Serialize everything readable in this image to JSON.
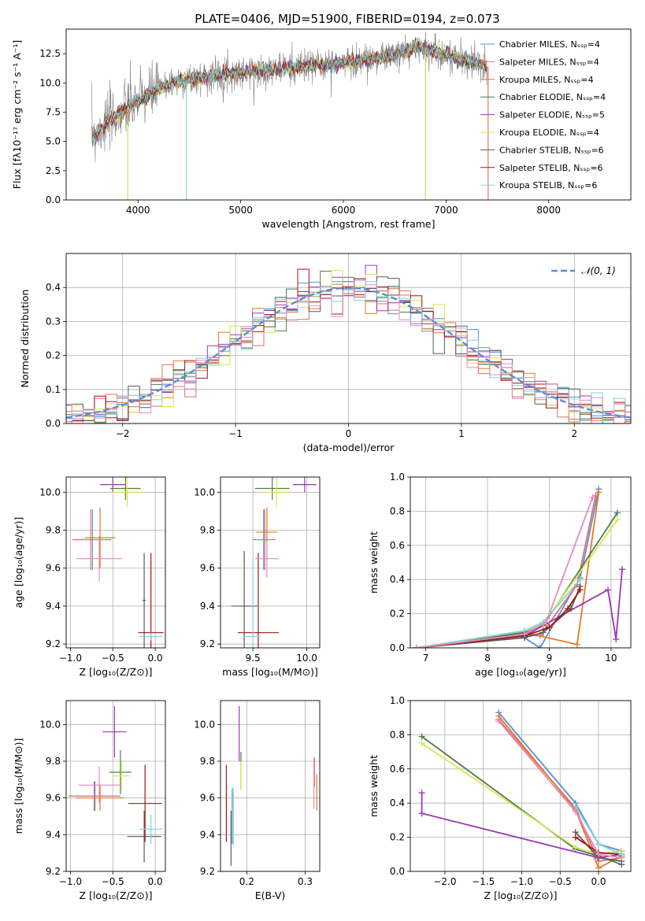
{
  "figure_title": "PLATE=0406, MJD=51900, FIBERID=0194, z=0.073",
  "colors": {
    "chabrier_miles": "#5b8fd6",
    "salpeter_miles": "#e36f6f",
    "kroupa_miles": "#e07b22",
    "chabrier_elodie": "#4f7a55",
    "salpeter_elodie": "#9b36b7",
    "kroupa_elodie": "#d6e84e",
    "chabrier_stelib": "#5a5a5a",
    "salpeter_stelib": "#a01515",
    "kroupa_stelib": "#7fd6d6",
    "pink": "#e58ac6",
    "observed": "#808080",
    "normal_curve": "#5b8fd6"
  },
  "chart_data": [
    {
      "id": "spectrum",
      "type": "line",
      "xlabel": "wavelength [Angstrom, rest frame]",
      "ylabel": "Flux [fλ10⁻¹⁷ erg cm⁻² s⁻¹ A⁻¹]",
      "xlim": [
        3300,
        8800
      ],
      "ylim": [
        0,
        14.6
      ],
      "xticks": [
        4000,
        5000,
        6000,
        7000,
        8000
      ],
      "yticks": [
        0.0,
        2.5,
        5.0,
        7.5,
        10.0,
        12.5
      ],
      "grid": false,
      "legend_position": "upper right",
      "legend": [
        "Chabrier MILES, Nₛₛₚ=4",
        "Salpeter MILES, Nₛₛₚ=4",
        "Kroupa MILES, Nₛₛₚ=4",
        "Chabrier ELODIE, Nₛₛₚ=4",
        "Salpeter ELODIE, Nₛₛₚ=5",
        "Kroupa ELODIE, Nₛₛₚ=4",
        "Chabrier STELIB, Nₛₛₚ=6",
        "Salpeter STELIB, Nₛₛₚ=6",
        "Kroupa STELIB, Nₛₛₚ=6"
      ],
      "continuum": {
        "x": [
          3550,
          3700,
          3900,
          4100,
          4300,
          4500,
          4800,
          5100,
          5400,
          5700,
          6000,
          6300,
          6600,
          6700,
          7000,
          7200,
          7400
        ],
        "y": [
          5.4,
          6.6,
          7.9,
          9.0,
          9.9,
          10.3,
          10.7,
          11.0,
          11.2,
          11.5,
          11.7,
          12.1,
          12.6,
          13.1,
          12.4,
          11.9,
          11.4
        ]
      },
      "spikes": [
        {
          "x": 3900,
          "y": 0.0
        },
        {
          "x": 4470,
          "y": 0.0
        },
        {
          "x": 6800,
          "y": 0.0
        },
        {
          "x": 7410,
          "y": 0.0
        }
      ]
    },
    {
      "id": "residuals",
      "type": "histogram",
      "xlabel": "(data-model)/error",
      "ylabel": "Normed distribution",
      "xlim": [
        -2.5,
        2.5
      ],
      "ylim": [
        0,
        0.5
      ],
      "xticks": [
        -2,
        -1,
        0,
        1,
        2
      ],
      "yticks": [
        0.0,
        0.1,
        0.2,
        0.3,
        0.4
      ],
      "grid": true,
      "legend_position": "upper right",
      "legend": [
        "𝒩(0, 1)"
      ],
      "bin_width": 0.1
    },
    {
      "id": "age_vs_Z",
      "type": "errorbar",
      "xlabel": "Z [log₁₀(Z/Z⊙)]",
      "ylabel": "age  [log₁₀(age/yr)]",
      "xlim": [
        -1.05,
        0.12
      ],
      "ylim": [
        9.18,
        10.08
      ],
      "xticks": [
        -1.0,
        -0.5,
        0.0
      ],
      "yticks": [
        9.2,
        9.4,
        9.6,
        9.8,
        10.0
      ],
      "grid": true,
      "points": [
        {
          "c": "chabrier_miles",
          "x": -0.74,
          "xerr": 0.22,
          "y": 9.75,
          "yerr": 0.16
        },
        {
          "c": "salpeter_miles",
          "x": -0.76,
          "xerr": 0.22,
          "y": 9.75,
          "yerr": 0.16
        },
        {
          "c": "kroupa_miles",
          "x": -0.65,
          "xerr": 0.18,
          "y": 9.76,
          "yerr": 0.16
        },
        {
          "c": "chabrier_elodie",
          "x": -0.35,
          "xerr": 0.18,
          "y": 10.02,
          "yerr": 0.06
        },
        {
          "c": "salpeter_elodie",
          "x": -0.5,
          "xerr": 0.15,
          "y": 10.04,
          "yerr": 0.04
        },
        {
          "c": "kroupa_elodie",
          "x": -0.33,
          "xerr": 0.18,
          "y": 10.0,
          "yerr": 0.08
        },
        {
          "c": "chabrier_stelib",
          "x": -0.13,
          "xerr": 0.02,
          "y": 9.43,
          "yerr": 0.25
        },
        {
          "c": "salpeter_stelib",
          "x": -0.05,
          "xerr": 0.15,
          "y": 9.26,
          "yerr": 0.42
        },
        {
          "c": "kroupa_stelib",
          "x": -0.05,
          "xerr": 0.14,
          "y": 9.24,
          "yerr": 0.02
        },
        {
          "c": "pink",
          "x": -0.66,
          "xerr": 0.27,
          "y": 9.65,
          "yerr": 0.12
        }
      ]
    },
    {
      "id": "age_vs_mass",
      "type": "errorbar",
      "xlabel": "mass [log₁₀(M/M⊙)]",
      "ylabel": "",
      "xlim": [
        9.2,
        10.12
      ],
      "ylim": [
        9.18,
        10.08
      ],
      "xticks": [
        9.5,
        10.0
      ],
      "yticks": [
        9.2,
        9.4,
        9.6,
        9.8,
        10.0
      ],
      "grid": true,
      "points": [
        {
          "c": "chabrier_miles",
          "x": 9.6,
          "xerr": 0.1,
          "y": 9.75,
          "yerr": 0.16
        },
        {
          "c": "salpeter_miles",
          "x": 9.61,
          "xerr": 0.1,
          "y": 9.75,
          "yerr": 0.16
        },
        {
          "c": "kroupa_miles",
          "x": 9.63,
          "xerr": 0.1,
          "y": 9.79,
          "yerr": 0.13
        },
        {
          "c": "chabrier_elodie",
          "x": 9.68,
          "xerr": 0.16,
          "y": 10.02,
          "yerr": 0.06
        },
        {
          "c": "salpeter_elodie",
          "x": 9.98,
          "xerr": 0.11,
          "y": 10.04,
          "yerr": 0.04
        },
        {
          "c": "kroupa_elodie",
          "x": 9.72,
          "xerr": 0.12,
          "y": 10.0,
          "yerr": 0.08
        },
        {
          "c": "chabrier_stelib",
          "x": 9.42,
          "xerr": 0.12,
          "y": 9.4,
          "yerr": 0.29
        },
        {
          "c": "salpeter_stelib",
          "x": 9.55,
          "xerr": 0.19,
          "y": 9.26,
          "yerr": 0.42
        },
        {
          "c": "kroupa_stelib",
          "x": 9.5,
          "xerr": 0.07,
          "y": 9.24,
          "yerr": 0.42
        },
        {
          "c": "pink",
          "x": 9.63,
          "xerr": 0.11,
          "y": 9.65,
          "yerr": 0.1
        }
      ]
    },
    {
      "id": "massweight_vs_age",
      "type": "line",
      "xlabel": "age  [log₁₀(age/yr)]",
      "ylabel": "mass weight",
      "xlim": [
        6.75,
        10.32
      ],
      "ylim": [
        0,
        1
      ],
      "xticks": [
        7,
        8,
        9,
        10
      ],
      "yticks": [
        0.0,
        0.2,
        0.4,
        0.6,
        0.8,
        1.0
      ],
      "grid": true,
      "series": [
        {
          "c": "chabrier_miles",
          "x": [
            6.85,
            8.55,
            8.85,
            9.5,
            9.8
          ],
          "y": [
            0.0,
            0.07,
            0.0,
            0.41,
            0.93
          ]
        },
        {
          "c": "salpeter_miles",
          "x": [
            6.85,
            8.55,
            8.85,
            9.45,
            9.75
          ],
          "y": [
            0.0,
            0.08,
            0.07,
            0.37,
            0.89
          ]
        },
        {
          "c": "kroupa_miles",
          "x": [
            6.85,
            8.6,
            9.45,
            9.8
          ],
          "y": [
            0.0,
            0.09,
            0.02,
            0.91
          ]
        },
        {
          "c": "chabrier_elodie",
          "x": [
            6.85,
            8.6,
            8.9,
            10.1
          ],
          "y": [
            0.0,
            0.09,
            0.13,
            0.79
          ]
        },
        {
          "c": "salpeter_elodie",
          "x": [
            6.85,
            8.65,
            9.95,
            10.08,
            10.18
          ],
          "y": [
            0.0,
            0.08,
            0.34,
            0.05,
            0.46
          ]
        },
        {
          "c": "kroupa_elodie",
          "x": [
            6.85,
            8.6,
            8.9,
            10.1
          ],
          "y": [
            0.0,
            0.1,
            0.14,
            0.75
          ]
        },
        {
          "c": "chabrier_stelib",
          "x": [
            6.85,
            8.6,
            8.9,
            9.35,
            9.5
          ],
          "y": [
            0.0,
            0.06,
            0.09,
            0.23,
            0.36
          ]
        },
        {
          "c": "salpeter_stelib",
          "x": [
            6.85,
            8.6,
            9.0,
            9.3,
            9.5
          ],
          "y": [
            0.0,
            0.07,
            0.12,
            0.23,
            0.34
          ]
        },
        {
          "c": "kroupa_stelib",
          "x": [
            6.85,
            8.6,
            8.9,
            9.5
          ],
          "y": [
            0.0,
            0.1,
            0.15,
            0.4
          ]
        },
        {
          "c": "pink",
          "x": [
            6.85,
            8.6,
            8.95,
            9.7
          ],
          "y": [
            0.0,
            0.08,
            0.15,
            0.88
          ]
        }
      ]
    },
    {
      "id": "mass_vs_Z",
      "type": "errorbar",
      "xlabel": "Z [log₁₀(Z/Z⊙)]",
      "ylabel": "mass [log₁₀(M/M⊙)]",
      "xlim": [
        -1.05,
        0.12
      ],
      "ylim": [
        9.2,
        10.13
      ],
      "xticks": [
        -1.0,
        -0.5,
        0.0
      ],
      "yticks": [
        9.2,
        9.4,
        9.6,
        9.8,
        10.0
      ],
      "grid": true,
      "points": [
        {
          "c": "chabrier_miles",
          "x": -0.71,
          "xerr": 0.3,
          "y": 9.61,
          "yerr": 0.08
        },
        {
          "c": "salpeter_miles",
          "x": -0.72,
          "xerr": 0.3,
          "y": 9.61,
          "yerr": 0.08
        },
        {
          "c": "kroupa_miles",
          "x": -0.65,
          "xerr": 0.28,
          "y": 9.6,
          "yerr": 0.07
        },
        {
          "c": "chabrier_elodie",
          "x": -0.41,
          "xerr": 0.13,
          "y": 9.74,
          "yerr": 0.12
        },
        {
          "c": "salpeter_elodie",
          "x": -0.48,
          "xerr": 0.14,
          "y": 9.96,
          "yerr": 0.14
        },
        {
          "c": "kroupa_elodie",
          "x": -0.4,
          "xerr": 0.1,
          "y": 9.72,
          "yerr": 0.08
        },
        {
          "c": "chabrier_stelib",
          "x": -0.13,
          "xerr": 0.2,
          "y": 9.39,
          "yerr": 0.14
        },
        {
          "c": "salpeter_stelib",
          "x": -0.12,
          "xerr": 0.2,
          "y": 9.57,
          "yerr": 0.21
        },
        {
          "c": "kroupa_stelib",
          "x": -0.05,
          "xerr": 0.14,
          "y": 9.43,
          "yerr": 0.08
        },
        {
          "c": "pink",
          "x": -0.66,
          "xerr": 0.25,
          "y": 9.67,
          "yerr": 0.1
        }
      ]
    },
    {
      "id": "mass_vs_ebv",
      "type": "errorbar",
      "xlabel": "E(B-V)",
      "ylabel": "",
      "xlim": [
        0.155,
        0.325
      ],
      "ylim": [
        9.2,
        10.13
      ],
      "xticks": [
        0.2,
        0.3
      ],
      "yticks": [
        9.2,
        9.4,
        9.6,
        9.8,
        10.0
      ],
      "grid": true,
      "points": [
        {
          "c": "chabrier_miles",
          "x": 0.175,
          "xerr": 0.0,
          "y": 9.5,
          "yerr": 0.15
        },
        {
          "c": "salpeter_miles",
          "x": 0.316,
          "xerr": 0.0,
          "y": 9.74,
          "yerr": 0.08
        },
        {
          "c": "kroupa_miles",
          "x": 0.32,
          "xerr": 0.0,
          "y": 9.63,
          "yerr": 0.1
        },
        {
          "c": "chabrier_elodie",
          "x": 0.19,
          "xerr": 0.0,
          "y": 9.75,
          "yerr": 0.1
        },
        {
          "c": "salpeter_elodie",
          "x": 0.187,
          "xerr": 0.0,
          "y": 9.95,
          "yerr": 0.15
        },
        {
          "c": "kroupa_elodie",
          "x": 0.19,
          "xerr": 0.0,
          "y": 9.72,
          "yerr": 0.08
        },
        {
          "c": "chabrier_stelib",
          "x": 0.173,
          "xerr": 0.0,
          "y": 9.38,
          "yerr": 0.15
        },
        {
          "c": "salpeter_stelib",
          "x": 0.165,
          "xerr": 0.0,
          "y": 9.57,
          "yerr": 0.21
        },
        {
          "c": "kroupa_stelib",
          "x": 0.177,
          "xerr": 0.0,
          "y": 9.5,
          "yerr": 0.16
        },
        {
          "c": "pink",
          "x": 0.315,
          "xerr": 0.0,
          "y": 9.68,
          "yerr": 0.14
        }
      ]
    },
    {
      "id": "massweight_vs_Z",
      "type": "line",
      "xlabel": "Z [log₁₀(Z/Z⊙)]",
      "ylabel": "mass weight",
      "xlim": [
        -2.45,
        0.42
      ],
      "ylim": [
        0,
        1
      ],
      "xticks": [
        -2.0,
        -1.5,
        -1.0,
        -0.5,
        0.0
      ],
      "yticks": [
        0.0,
        0.2,
        0.4,
        0.6,
        0.8,
        1.0
      ],
      "grid": true,
      "series": [
        {
          "c": "chabrier_miles",
          "x": [
            -1.3,
            -0.3,
            0.0,
            0.3
          ],
          "y": [
            0.93,
            0.4,
            0.16,
            0.12
          ]
        },
        {
          "c": "salpeter_miles",
          "x": [
            -1.3,
            -0.3,
            0.0,
            0.3
          ],
          "y": [
            0.89,
            0.37,
            0.06,
            0.08
          ]
        },
        {
          "c": "kroupa_miles",
          "x": [
            -1.3,
            -0.3,
            0.0,
            0.3
          ],
          "y": [
            0.91,
            0.36,
            0.02,
            0.09
          ]
        },
        {
          "c": "chabrier_elodie",
          "x": [
            -2.3,
            -0.3,
            0.0,
            0.3
          ],
          "y": [
            0.79,
            0.13,
            0.09,
            0.04
          ]
        },
        {
          "c": "salpeter_elodie",
          "x": [
            -2.3,
            -2.3,
            0.0,
            0.3
          ],
          "y": [
            0.46,
            0.34,
            0.08,
            0.1
          ]
        },
        {
          "c": "kroupa_elodie",
          "x": [
            -2.3,
            -0.3,
            0.0,
            0.3
          ],
          "y": [
            0.75,
            0.14,
            0.1,
            0.12
          ]
        },
        {
          "c": "chabrier_stelib",
          "x": [
            -0.3,
            0.0,
            0.3
          ],
          "y": [
            0.23,
            0.08,
            0.06
          ]
        },
        {
          "c": "salpeter_stelib",
          "x": [
            -0.3,
            0.0,
            0.3
          ],
          "y": [
            0.2,
            0.11,
            0.1
          ]
        },
        {
          "c": "kroupa_stelib",
          "x": [
            -0.3,
            0.0,
            0.3
          ],
          "y": [
            0.38,
            0.16,
            0.1
          ]
        },
        {
          "c": "pink",
          "x": [
            -1.3,
            -0.3,
            0.0,
            0.3
          ],
          "y": [
            0.88,
            0.35,
            0.1,
            0.08
          ]
        }
      ]
    }
  ]
}
